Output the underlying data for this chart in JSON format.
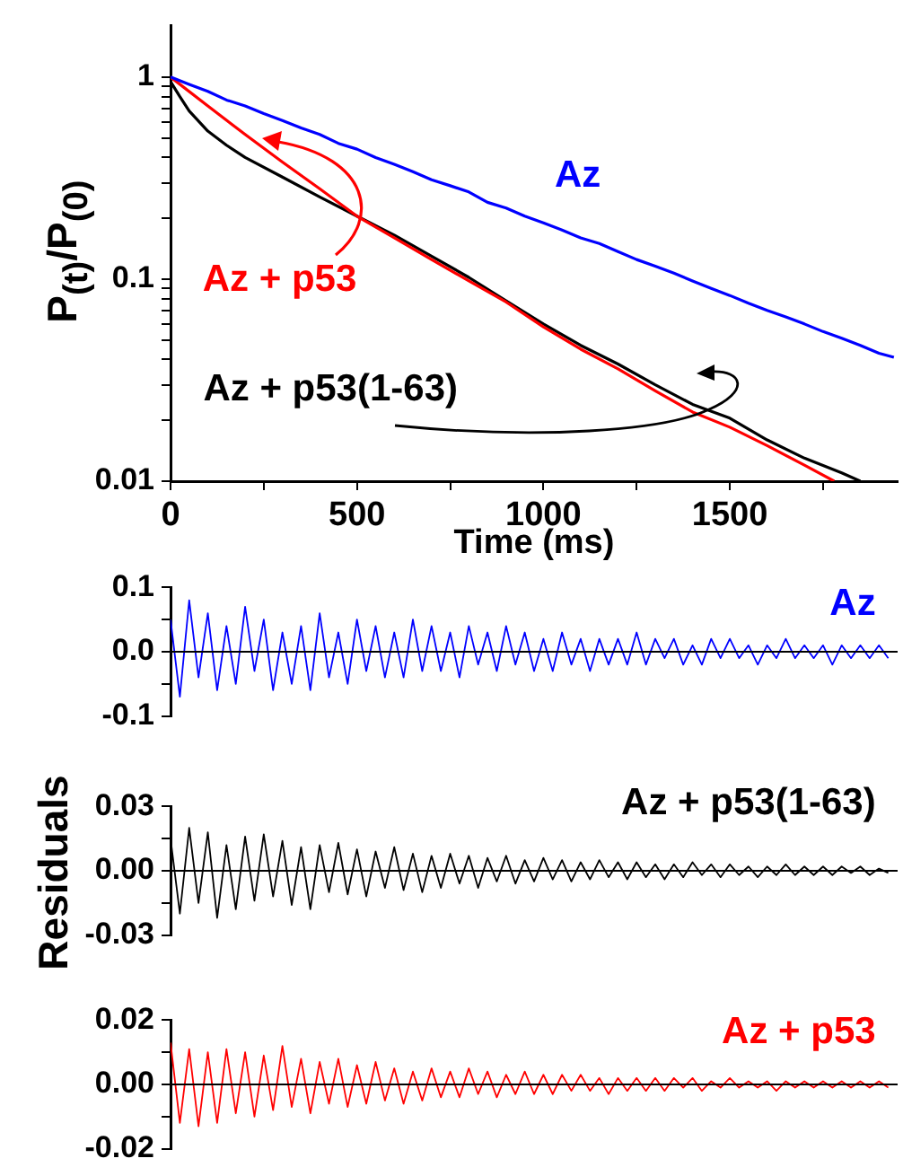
{
  "chart_data": [
    {
      "type": "line",
      "xlabel": "Time (ms)",
      "ylabel": "P$_{(t)}$/P$_{(0)}$",
      "log": "y",
      "xlim": [
        0,
        1950
      ],
      "ylim": [
        0.01,
        1.8
      ],
      "xticks": [
        0,
        {
          "value": 250,
          "label": null
        },
        500,
        {
          "value": 750,
          "label": null
        },
        1000,
        {
          "value": 1250,
          "label": null
        },
        1500,
        {
          "value": 1750,
          "label": null
        }
      ],
      "yticks": [
        0.01,
        {
          "value": 0.02,
          "label": null
        },
        {
          "value": 0.03,
          "label": null
        },
        {
          "value": 0.04,
          "label": null
        },
        {
          "value": 0.05,
          "label": null
        },
        {
          "value": 0.06,
          "label": null
        },
        {
          "value": 0.07,
          "label": null
        },
        {
          "value": 0.08,
          "label": null
        },
        {
          "value": 0.09,
          "label": null
        },
        0.1,
        {
          "value": 0.2,
          "label": null
        },
        {
          "value": 0.3,
          "label": null
        },
        {
          "value": 0.4,
          "label": null
        },
        {
          "value": 0.5,
          "label": null
        },
        {
          "value": 0.6,
          "label": null
        },
        {
          "value": 0.7,
          "label": null
        },
        {
          "value": 0.8,
          "label": null
        },
        {
          "value": 0.9,
          "label": null
        },
        1
      ],
      "series": [
        {
          "name": "Az",
          "color": "#0000ff",
          "x": [
            0,
            50,
            100,
            150,
            200,
            250,
            300,
            350,
            400,
            450,
            500,
            550,
            600,
            650,
            700,
            750,
            800,
            850,
            900,
            950,
            1000,
            1050,
            1100,
            1150,
            1200,
            1250,
            1300,
            1350,
            1400,
            1450,
            1500,
            1550,
            1600,
            1650,
            1700,
            1750,
            1800,
            1850,
            1900,
            1940
          ],
          "values": [
            1,
            0.92,
            0.85,
            0.77,
            0.72,
            0.66,
            0.61,
            0.56,
            0.52,
            0.47,
            0.44,
            0.4,
            0.37,
            0.34,
            0.31,
            0.29,
            0.27,
            0.24,
            0.225,
            0.205,
            0.19,
            0.175,
            0.16,
            0.15,
            0.137,
            0.125,
            0.116,
            0.107,
            0.098,
            0.09,
            0.083,
            0.076,
            0.07,
            0.065,
            0.06,
            0.055,
            0.051,
            0.047,
            0.043,
            0.041
          ]
        },
        {
          "name": "Az + p53",
          "color": "#ff0000",
          "x": [
            0,
            100,
            200,
            300,
            400,
            500,
            600,
            700,
            800,
            900,
            1000,
            1100,
            1200,
            1300,
            1400,
            1500,
            1600,
            1700,
            1780
          ],
          "values": [
            1,
            0.72,
            0.52,
            0.38,
            0.28,
            0.205,
            0.16,
            0.125,
            0.098,
            0.077,
            0.058,
            0.045,
            0.036,
            0.028,
            0.022,
            0.0185,
            0.015,
            0.012,
            0.01
          ]
        },
        {
          "name": "Az + p53(1-63)",
          "color": "#000000",
          "x": [
            0,
            25,
            50,
            100,
            150,
            200,
            300,
            400,
            500,
            600,
            700,
            800,
            900,
            1000,
            1100,
            1200,
            1300,
            1400,
            1500,
            1600,
            1700,
            1800,
            1850
          ],
          "values": [
            0.95,
            0.8,
            0.68,
            0.54,
            0.46,
            0.4,
            0.32,
            0.255,
            0.205,
            0.165,
            0.13,
            0.102,
            0.078,
            0.06,
            0.047,
            0.038,
            0.03,
            0.024,
            0.0205,
            0.016,
            0.013,
            0.011,
            0.01
          ]
        }
      ]
    },
    {
      "type": "line",
      "tick_labels": "y",
      "xlim": [
        0,
        1950
      ],
      "ylim": [
        -0.1,
        0.1
      ],
      "yticks": [
        {
          "value": -0.1,
          "label": "-0.1"
        },
        {
          "value": -0.05,
          "label": null
        },
        {
          "value": 0,
          "label": "0.0"
        },
        {
          "value": 0.05,
          "label": null
        },
        0.1
      ],
      "x": [
        0,
        25,
        50,
        75,
        100,
        125,
        150,
        175,
        200,
        225,
        250,
        275,
        300,
        325,
        350,
        375,
        400,
        425,
        450,
        475,
        500,
        525,
        550,
        575,
        600,
        625,
        650,
        675,
        700,
        725,
        750,
        775,
        800,
        825,
        850,
        875,
        900,
        925,
        950,
        975,
        1000,
        1025,
        1050,
        1075,
        1100,
        1125,
        1150,
        1175,
        1200,
        1225,
        1250,
        1275,
        1300,
        1325,
        1350,
        1375,
        1400,
        1425,
        1450,
        1475,
        1500,
        1525,
        1550,
        1575,
        1600,
        1625,
        1650,
        1675,
        1700,
        1725,
        1750,
        1775,
        1800,
        1825,
        1850,
        1875,
        1900,
        1925
      ],
      "ref_lines": [
        {
          "axis": "y",
          "value": 0,
          "color": "#000000"
        }
      ],
      "series": [
        {
          "name": "Az",
          "color": "#0000ff",
          "values": [
            0.05,
            -0.07,
            0.08,
            -0.04,
            0.06,
            -0.06,
            0.04,
            -0.05,
            0.07,
            -0.03,
            0.05,
            -0.06,
            0.03,
            -0.05,
            0.04,
            -0.06,
            0.06,
            -0.04,
            0.03,
            -0.05,
            0.05,
            -0.03,
            0.04,
            -0.04,
            0.03,
            -0.04,
            0.05,
            -0.03,
            0.04,
            -0.03,
            0.03,
            -0.04,
            0.04,
            -0.02,
            0.03,
            -0.03,
            0.04,
            -0.02,
            0.03,
            -0.03,
            0.02,
            -0.03,
            0.03,
            -0.02,
            0.02,
            -0.03,
            0.02,
            -0.02,
            0.02,
            -0.02,
            0.03,
            -0.02,
            0.02,
            -0.01,
            0.02,
            -0.02,
            0.01,
            -0.02,
            0.02,
            -0.01,
            0.02,
            -0.01,
            0.01,
            -0.02,
            0.01,
            -0.01,
            0.02,
            -0.01,
            0.01,
            -0.01,
            0.01,
            -0.02,
            0.01,
            -0.01,
            0.01,
            -0.01,
            0.01,
            -0.01
          ]
        }
      ]
    },
    {
      "type": "line",
      "tick_labels": "y",
      "ylabel": "Residuals",
      "xlim": [
        0,
        1950
      ],
      "ylim": [
        -0.03,
        0.03
      ],
      "yticks": [
        -0.03,
        {
          "value": -0.015,
          "label": null
        },
        {
          "value": 0,
          "label": "0.00"
        },
        {
          "value": 0.015,
          "label": null
        },
        0.03
      ],
      "x": [
        0,
        25,
        50,
        75,
        100,
        125,
        150,
        175,
        200,
        225,
        250,
        275,
        300,
        325,
        350,
        375,
        400,
        425,
        450,
        475,
        500,
        525,
        550,
        575,
        600,
        625,
        650,
        675,
        700,
        725,
        750,
        775,
        800,
        825,
        850,
        875,
        900,
        925,
        950,
        975,
        1000,
        1025,
        1050,
        1075,
        1100,
        1125,
        1150,
        1175,
        1200,
        1225,
        1250,
        1275,
        1300,
        1325,
        1350,
        1375,
        1400,
        1425,
        1450,
        1475,
        1500,
        1525,
        1550,
        1575,
        1600,
        1625,
        1650,
        1675,
        1700,
        1725,
        1750,
        1775,
        1800,
        1825,
        1850,
        1875,
        1900,
        1925
      ],
      "ref_lines": [
        {
          "axis": "y",
          "value": 0,
          "color": "#000000"
        }
      ],
      "series": [
        {
          "name": "Az + p53(1-63)",
          "color": "#000000",
          "values": [
            0.015,
            -0.02,
            0.02,
            -0.015,
            0.018,
            -0.022,
            0.012,
            -0.018,
            0.016,
            -0.014,
            0.017,
            -0.012,
            0.014,
            -0.016,
            0.011,
            -0.018,
            0.012,
            -0.01,
            0.013,
            -0.011,
            0.01,
            -0.012,
            0.009,
            -0.008,
            0.011,
            -0.009,
            0.008,
            -0.01,
            0.007,
            -0.008,
            0.008,
            -0.006,
            0.007,
            -0.008,
            0.006,
            -0.005,
            0.007,
            -0.006,
            0.005,
            -0.005,
            0.006,
            -0.004,
            0.005,
            -0.005,
            0.004,
            -0.004,
            0.005,
            -0.003,
            0.004,
            -0.004,
            0.004,
            -0.003,
            0.003,
            -0.004,
            0.003,
            -0.003,
            0.004,
            -0.002,
            0.003,
            -0.003,
            0.003,
            -0.002,
            0.002,
            -0.003,
            0.002,
            -0.002,
            0.003,
            -0.002,
            0.002,
            -0.002,
            0.002,
            -0.002,
            0.002,
            -0.001,
            0.002,
            -0.002,
            0.001,
            -0.001
          ]
        }
      ]
    },
    {
      "type": "line",
      "tick_labels": "y",
      "xlim": [
        0,
        1950
      ],
      "ylim": [
        -0.02,
        0.02
      ],
      "yticks": [
        -0.02,
        {
          "value": -0.01,
          "label": null
        },
        {
          "value": 0,
          "label": "0.00"
        },
        {
          "value": 0.01,
          "label": null
        },
        0.02
      ],
      "x": [
        0,
        25,
        50,
        75,
        100,
        125,
        150,
        175,
        200,
        225,
        250,
        275,
        300,
        325,
        350,
        375,
        400,
        425,
        450,
        475,
        500,
        525,
        550,
        575,
        600,
        625,
        650,
        675,
        700,
        725,
        750,
        775,
        800,
        825,
        850,
        875,
        900,
        925,
        950,
        975,
        1000,
        1025,
        1050,
        1075,
        1100,
        1125,
        1150,
        1175,
        1200,
        1225,
        1250,
        1275,
        1300,
        1325,
        1350,
        1375,
        1400,
        1425,
        1450,
        1475,
        1500,
        1525,
        1550,
        1575,
        1600,
        1625,
        1650,
        1675,
        1700,
        1725,
        1750,
        1775,
        1800,
        1825,
        1850,
        1875,
        1900,
        1925
      ],
      "ref_lines": [
        {
          "axis": "y",
          "value": 0,
          "color": "#000000"
        }
      ],
      "series": [
        {
          "name": "Az + p53",
          "color": "#ff0000",
          "values": [
            0.013,
            -0.012,
            0.011,
            -0.013,
            0.01,
            -0.012,
            0.011,
            -0.009,
            0.01,
            -0.01,
            0.009,
            -0.008,
            0.012,
            -0.007,
            0.008,
            -0.009,
            0.007,
            -0.006,
            0.008,
            -0.007,
            0.006,
            -0.006,
            0.007,
            -0.005,
            0.005,
            -0.006,
            0.004,
            -0.005,
            0.005,
            -0.004,
            0.004,
            -0.004,
            0.005,
            -0.003,
            0.004,
            -0.004,
            0.003,
            -0.003,
            0.004,
            -0.003,
            0.003,
            -0.003,
            0.003,
            -0.002,
            0.003,
            -0.002,
            0.002,
            -0.003,
            0.002,
            -0.002,
            0.002,
            -0.002,
            0.002,
            -0.002,
            0.002,
            -0.001,
            0.002,
            -0.002,
            0.001,
            -0.001,
            0.002,
            -0.001,
            0.001,
            -0.001,
            0.001,
            -0.002,
            0.001,
            -0.001,
            0.001,
            -0.001,
            0.001,
            -0.001,
            0.001,
            -0.001,
            0.001,
            -0.001,
            0.001,
            -0.001
          ]
        }
      ]
    }
  ]
}
